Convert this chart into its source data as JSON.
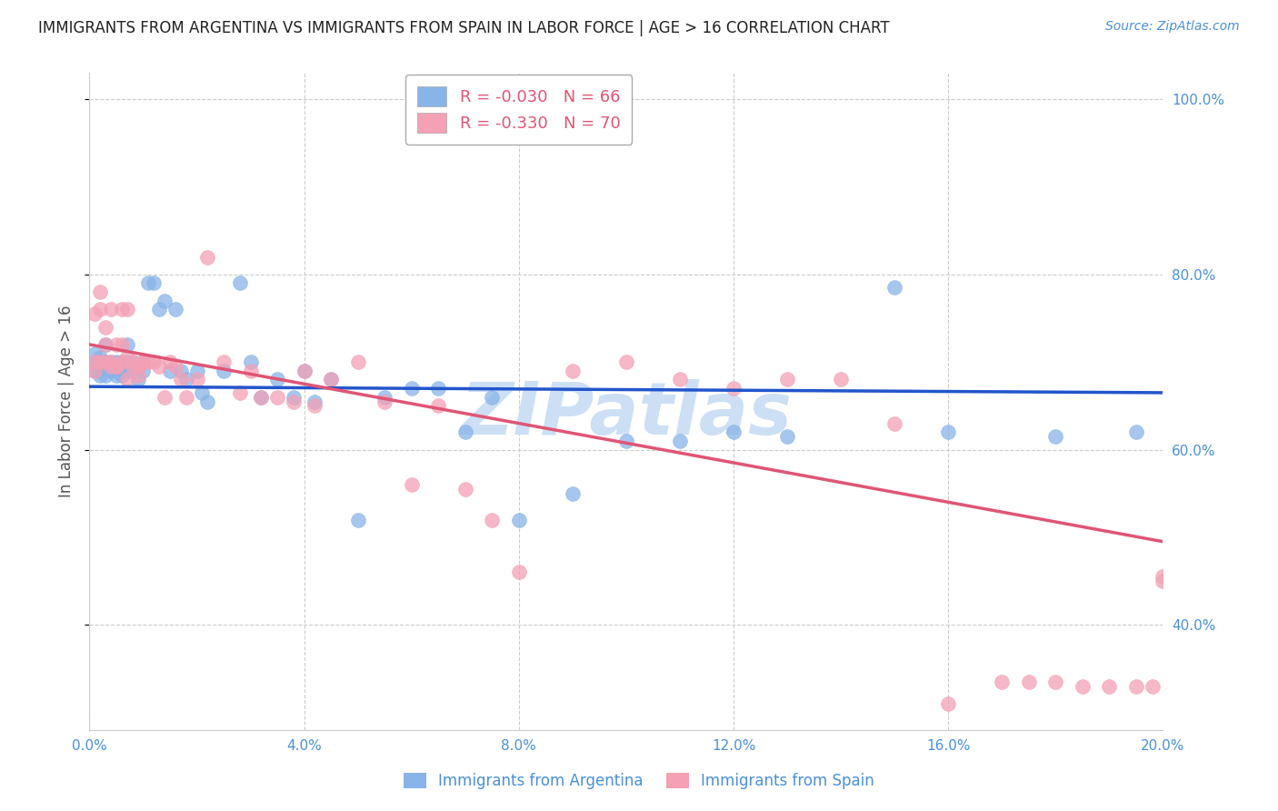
{
  "title": "IMMIGRANTS FROM ARGENTINA VS IMMIGRANTS FROM SPAIN IN LABOR FORCE | AGE > 16 CORRELATION CHART",
  "source": "Source: ZipAtlas.com",
  "ylabel": "In Labor Force | Age > 16",
  "xlim": [
    0.0,
    0.2
  ],
  "ylim": [
    0.28,
    1.03
  ],
  "yticks": [
    0.4,
    0.6,
    0.8,
    1.0
  ],
  "ytick_labels": [
    "40.0%",
    "60.0%",
    "80.0%",
    "100.0%"
  ],
  "xticks": [
    0.0,
    0.04,
    0.08,
    0.12,
    0.16,
    0.2
  ],
  "xtick_labels": [
    "0.0%",
    "4.0%",
    "8.0%",
    "12.0%",
    "16.0%",
    "20.0%"
  ],
  "argentina_color": "#88b4e8",
  "spain_color": "#f4a0b5",
  "argentina_line_color": "#2255cc",
  "spain_line_color": "#e05575",
  "argentina_R": -0.03,
  "argentina_N": 66,
  "spain_R": -0.33,
  "spain_N": 70,
  "grid_color": "#cccccc",
  "background_color": "#ffffff",
  "title_color": "#222222",
  "axis_label_color": "#555555",
  "tick_label_color": "#4a90d9",
  "watermark": "ZIPatlas",
  "watermark_color": "#ccdff5",
  "argentina_line_y0": 0.672,
  "argentina_line_y1": 0.665,
  "spain_line_y0": 0.72,
  "spain_line_y1": 0.495,
  "argentina_x": [
    0.001,
    0.001,
    0.001,
    0.002,
    0.002,
    0.002,
    0.002,
    0.003,
    0.003,
    0.003,
    0.003,
    0.004,
    0.004,
    0.004,
    0.005,
    0.005,
    0.005,
    0.005,
    0.006,
    0.006,
    0.006,
    0.007,
    0.007,
    0.007,
    0.008,
    0.008,
    0.009,
    0.009,
    0.01,
    0.01,
    0.011,
    0.012,
    0.013,
    0.014,
    0.015,
    0.016,
    0.017,
    0.018,
    0.02,
    0.021,
    0.022,
    0.025,
    0.028,
    0.03,
    0.032,
    0.035,
    0.038,
    0.04,
    0.042,
    0.045,
    0.05,
    0.055,
    0.06,
    0.065,
    0.07,
    0.075,
    0.08,
    0.09,
    0.1,
    0.11,
    0.12,
    0.13,
    0.15,
    0.16,
    0.18,
    0.195
  ],
  "argentina_y": [
    0.69,
    0.7,
    0.71,
    0.69,
    0.7,
    0.705,
    0.685,
    0.7,
    0.695,
    0.685,
    0.72,
    0.69,
    0.7,
    0.695,
    0.695,
    0.7,
    0.69,
    0.685,
    0.695,
    0.7,
    0.685,
    0.7,
    0.72,
    0.69,
    0.7,
    0.695,
    0.695,
    0.68,
    0.7,
    0.69,
    0.79,
    0.79,
    0.76,
    0.77,
    0.69,
    0.76,
    0.69,
    0.68,
    0.69,
    0.665,
    0.655,
    0.69,
    0.79,
    0.7,
    0.66,
    0.68,
    0.66,
    0.69,
    0.655,
    0.68,
    0.52,
    0.66,
    0.67,
    0.67,
    0.62,
    0.66,
    0.52,
    0.55,
    0.61,
    0.61,
    0.62,
    0.615,
    0.785,
    0.62,
    0.615,
    0.62
  ],
  "spain_x": [
    0.001,
    0.001,
    0.001,
    0.002,
    0.002,
    0.002,
    0.003,
    0.003,
    0.003,
    0.004,
    0.004,
    0.004,
    0.005,
    0.005,
    0.005,
    0.006,
    0.006,
    0.006,
    0.007,
    0.007,
    0.007,
    0.008,
    0.008,
    0.009,
    0.009,
    0.01,
    0.01,
    0.011,
    0.012,
    0.013,
    0.014,
    0.015,
    0.016,
    0.017,
    0.018,
    0.02,
    0.022,
    0.025,
    0.028,
    0.03,
    0.032,
    0.035,
    0.038,
    0.04,
    0.042,
    0.045,
    0.05,
    0.055,
    0.06,
    0.065,
    0.07,
    0.075,
    0.08,
    0.09,
    0.1,
    0.11,
    0.12,
    0.13,
    0.14,
    0.15,
    0.16,
    0.17,
    0.175,
    0.18,
    0.185,
    0.19,
    0.195,
    0.198,
    0.2,
    0.2
  ],
  "spain_y": [
    0.7,
    0.69,
    0.755,
    0.7,
    0.76,
    0.78,
    0.7,
    0.72,
    0.74,
    0.7,
    0.695,
    0.76,
    0.695,
    0.72,
    0.695,
    0.7,
    0.72,
    0.76,
    0.705,
    0.68,
    0.76,
    0.695,
    0.7,
    0.695,
    0.685,
    0.7,
    0.7,
    0.7,
    0.7,
    0.695,
    0.66,
    0.7,
    0.695,
    0.68,
    0.66,
    0.68,
    0.82,
    0.7,
    0.665,
    0.69,
    0.66,
    0.66,
    0.655,
    0.69,
    0.65,
    0.68,
    0.7,
    0.655,
    0.56,
    0.65,
    0.555,
    0.52,
    0.46,
    0.69,
    0.7,
    0.68,
    0.67,
    0.68,
    0.68,
    0.63,
    0.31,
    0.335,
    0.335,
    0.335,
    0.33,
    0.33,
    0.33,
    0.33,
    0.455,
    0.45
  ],
  "legend_items": [
    {
      "label": "R = -0.030   N = 66",
      "color": "#88b4e8"
    },
    {
      "label": "R = -0.330   N = 70",
      "color": "#f4a0b5"
    }
  ],
  "bottom_legend": [
    {
      "label": "Immigrants from Argentina",
      "color": "#88b4e8"
    },
    {
      "label": "Immigrants from Spain",
      "color": "#f4a0b5"
    }
  ]
}
